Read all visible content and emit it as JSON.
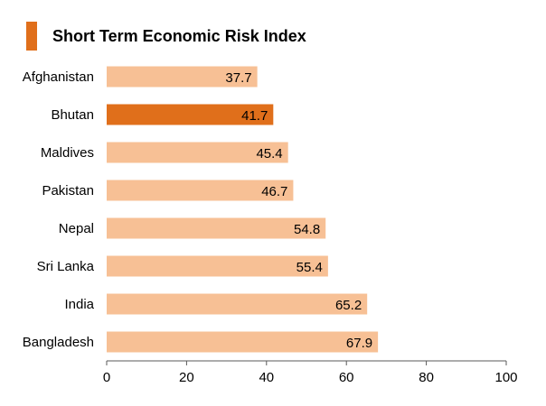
{
  "header": {
    "title": "Short Term Economic Risk Index"
  },
  "colors": {
    "accent": "#E06F1B",
    "bar_default": "#F7C095",
    "bar_highlight": "#E06F1B",
    "axis": "#595959",
    "text": "#000000"
  },
  "chart_data": {
    "type": "bar",
    "orientation": "horizontal",
    "title": "Short Term Economic Risk Index",
    "categories": [
      "Afghanistan",
      "Bhutan",
      "Maldives",
      "Pakistan",
      "Nepal",
      "Sri Lanka",
      "India",
      "Bangladesh"
    ],
    "values": [
      37.7,
      41.7,
      45.4,
      46.7,
      54.8,
      55.4,
      65.2,
      67.9
    ],
    "value_labels": [
      "37.7",
      "41.7",
      "45.4",
      "46.7",
      "54.8",
      "55.4",
      "65.2",
      "67.9"
    ],
    "highlight": "Bhutan",
    "xlim": [
      0,
      100
    ],
    "x_ticks": [
      0,
      20,
      40,
      60,
      80,
      100
    ],
    "x_tick_labels": [
      "0",
      "20",
      "40",
      "60",
      "80",
      "100"
    ],
    "grid": false,
    "legend": "none"
  }
}
